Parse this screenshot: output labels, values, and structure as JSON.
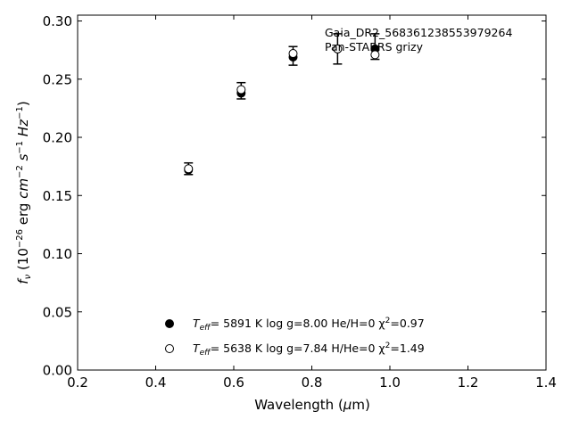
{
  "chart_data": {
    "type": "scatter",
    "xlabel_parts": {
      "main": "Wavelength (",
      "mu": "μ",
      "end": "m)"
    },
    "ylabel_parts": {
      "f": "f",
      "nu": "ν",
      "open": " (10",
      "exp_m26": "−26",
      "erg": " erg ",
      "cm": "cm",
      "exp_m2": "−2",
      "s": " s",
      "exp_m1a": "−1",
      "hz": " Hz",
      "exp_m1b": "−1",
      "close": ")"
    },
    "xlim": [
      0.2,
      1.4
    ],
    "ylim": [
      0.0,
      0.305
    ],
    "xticks": [
      "0.2",
      "0.4",
      "0.6",
      "0.8",
      "1.0",
      "1.2",
      "1.4"
    ],
    "yticks": [
      "0.00",
      "0.05",
      "0.10",
      "0.15",
      "0.20",
      "0.25",
      "0.30"
    ],
    "annotations": [
      "Gaia_DR2_568361238553979264",
      "Pan-STARRS grizy"
    ],
    "observed": [
      {
        "x": 0.484,
        "y": 0.173,
        "err": 0.005
      },
      {
        "x": 0.619,
        "y": 0.24,
        "err": 0.007
      },
      {
        "x": 0.752,
        "y": 0.27,
        "err": 0.008
      },
      {
        "x": 0.866,
        "y": 0.276,
        "err": 0.013
      },
      {
        "x": 0.962,
        "y": 0.278,
        "err": 0.011
      }
    ],
    "series": [
      {
        "marker": "filled",
        "legend": {
          "teff_label": "T",
          "teff_sub": "eff",
          "value": "=  5891 K  log g=8.00  He/H=0  χ",
          "chi_sup": "2",
          "chi_val": "=0.97"
        },
        "x": [
          0.484,
          0.619,
          0.752,
          0.866,
          0.962
        ],
        "y": [
          0.172,
          0.238,
          0.269,
          0.276,
          0.276
        ]
      },
      {
        "marker": "open",
        "legend": {
          "teff_label": "T",
          "teff_sub": "eff",
          "value": "=  5638 K  log g=7.84  H/He=0  χ",
          "chi_sup": "2",
          "chi_val": "=1.49"
        },
        "x": [
          0.484,
          0.619,
          0.752,
          0.866,
          0.962
        ],
        "y": [
          0.173,
          0.241,
          0.272,
          0.276,
          0.271
        ]
      }
    ]
  }
}
